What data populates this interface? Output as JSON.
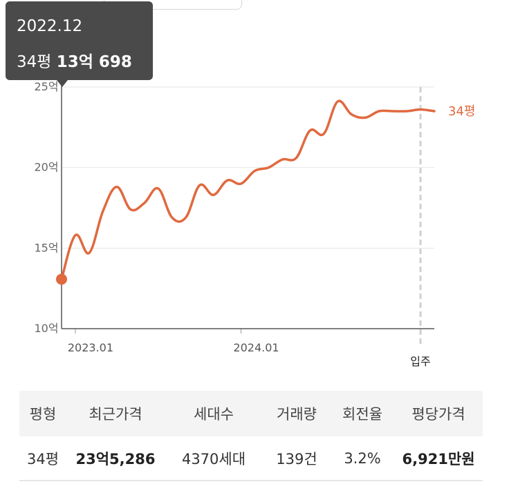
{
  "tooltip": {
    "date": "2022.12",
    "size": "34평",
    "price": "13억 698"
  },
  "chart_data": {
    "type": "line",
    "y_unit": "억",
    "ylim": [
      10,
      25
    ],
    "yticks": [
      "25억",
      "20억",
      "15억",
      "10억"
    ],
    "ytick_values": [
      25,
      20,
      15,
      10
    ],
    "xtick_labels": [
      "2023.01",
      "2024.01"
    ],
    "xtick_values": [
      "2023-01",
      "2024-01"
    ],
    "xlim": [
      "2022-12",
      "2025-03"
    ],
    "move_in": {
      "label": "입주",
      "x": "2025-02"
    },
    "grid": true,
    "series": [
      {
        "name": "34평",
        "color": "#e0693f",
        "x": [
          "2022-12",
          "2023-01",
          "2023-02",
          "2023-03",
          "2023-04",
          "2023-05",
          "2023-06",
          "2023-07",
          "2023-08",
          "2023-09",
          "2023-10",
          "2023-11",
          "2023-12",
          "2024-01",
          "2024-02",
          "2024-03",
          "2024-04",
          "2024-05",
          "2024-06",
          "2024-07",
          "2024-08",
          "2024-09",
          "2024-10",
          "2024-11",
          "2024-12",
          "2025-01",
          "2025-02",
          "2025-03"
        ],
        "values": [
          13.07,
          15.8,
          14.7,
          17.3,
          18.8,
          17.4,
          17.8,
          18.7,
          16.9,
          16.9,
          18.9,
          18.3,
          19.2,
          19.0,
          19.8,
          20.0,
          20.5,
          20.6,
          22.3,
          22.1,
          24.1,
          23.3,
          23.1,
          23.5,
          23.5,
          23.5,
          23.6,
          23.5
        ]
      }
    ]
  },
  "table": {
    "headers": [
      "평형",
      "최근가격",
      "세대수",
      "거래량",
      "회전율",
      "평당가격"
    ],
    "row": [
      "34평",
      "23억5,286",
      "4370세대",
      "139건",
      "3.2%",
      "6,921만원"
    ]
  }
}
